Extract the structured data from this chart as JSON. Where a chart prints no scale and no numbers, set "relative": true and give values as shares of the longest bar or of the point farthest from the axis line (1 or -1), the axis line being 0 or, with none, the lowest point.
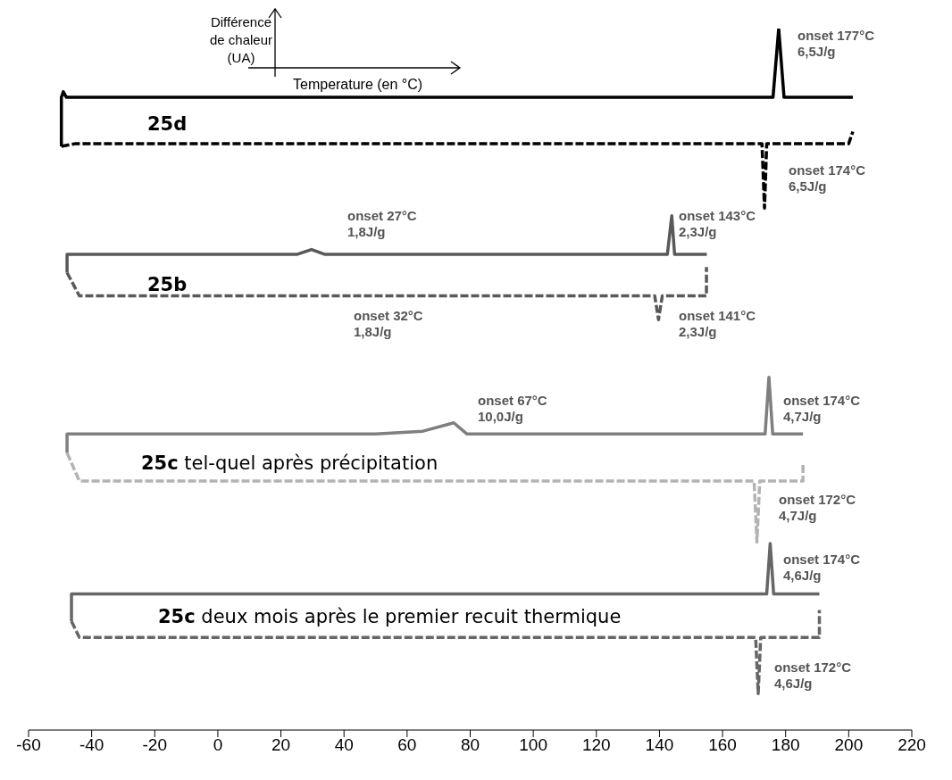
{
  "chart_data": {
    "type": "line",
    "relative": true,
    "xlabel": "Temperature (en °C)",
    "ylabel": "Différence\nde chaleur\n(UA)",
    "xlim": [
      -60,
      220
    ],
    "xticks": [
      -60,
      -40,
      -20,
      0,
      20,
      40,
      60,
      80,
      100,
      120,
      140,
      160,
      180,
      200,
      220
    ],
    "marker": "none",
    "series": [
      {
        "color": "#000000",
        "line_style": "solid",
        "x": [
          -49.6,
          -49.6,
          -49,
          -48,
          176,
          177.8,
          179.5,
          201.3
        ],
        "values": [
          0.832,
          0.902,
          0.91,
          0.902,
          0.902,
          1.0,
          0.902,
          0.902
        ]
      },
      {
        "color": "#000000",
        "line_style": "dashed",
        "x": [
          -49.6,
          -45,
          172.5,
          173.3,
          174,
          200,
          201.3
        ],
        "values": [
          0.832,
          0.836,
          0.836,
          0.744,
          0.836,
          0.836,
          0.853
        ]
      },
      {
        "color": "#595959",
        "line_style": "solid",
        "x": [
          -47.8,
          -47.8,
          25,
          29.7,
          34,
          142.5,
          143.9,
          144.8,
          155
        ],
        "values": [
          0.652,
          0.678,
          0.678,
          0.685,
          0.678,
          0.678,
          0.733,
          0.678,
          0.678
        ]
      },
      {
        "color": "#595959",
        "line_style": "dashed",
        "x": [
          -47.8,
          -43.9,
          138.5,
          139.7,
          140.9,
          154.9,
          154.9
        ],
        "values": [
          0.652,
          0.619,
          0.619,
          0.585,
          0.619,
          0.619,
          0.66
        ]
      },
      {
        "color": "#7f7f7f",
        "line_style": "solid",
        "x": [
          -47.8,
          -47.8,
          -45,
          50,
          65,
          74.8,
          79,
          173.5,
          174.7,
          175.9,
          185.5
        ],
        "values": [
          0.395,
          0.422,
          0.422,
          0.422,
          0.426,
          0.438,
          0.422,
          0.422,
          0.503,
          0.422,
          0.422
        ]
      },
      {
        "color": "#b3b3b3",
        "line_style": "dashed",
        "x": [
          -47.8,
          -43.9,
          170,
          170.9,
          171.8,
          185.5,
          185.5
        ],
        "values": [
          0.395,
          0.355,
          0.355,
          0.268,
          0.355,
          0.355,
          0.38
        ]
      },
      {
        "color": "#666666",
        "line_style": "solid",
        "x": [
          -46.4,
          -46.4,
          -44,
          174,
          175.1,
          176.2,
          190.7
        ],
        "values": [
          0.155,
          0.194,
          0.194,
          0.194,
          0.266,
          0.194,
          0.194
        ]
      },
      {
        "color": "#666666",
        "line_style": "dashed",
        "x": [
          -46.4,
          -43.9,
          170.5,
          171.3,
          172.1,
          190.7,
          190.7
        ],
        "values": [
          0.155,
          0.132,
          0.132,
          0.052,
          0.132,
          0.132,
          0.171
        ]
      }
    ],
    "annotations": [
      "onset 177°C\n6,5J/g",
      "onset 174°C\n6,5J/g",
      "onset 27°C\n1,8J/g",
      "onset 143°C\n2,3J/g",
      "onset 32°C\n1,8J/g",
      "onset 141°C\n2,3J/g",
      "onset 67°C\n10,0J/g",
      "onset 174°C\n4,7J/g",
      "onset 172°C\n4,7J/g",
      "onset 174°C\n4,6J/g",
      "onset 172°C\n4,6J/g",
      "25d",
      "25b",
      "25c tel-quel après précipitation",
      "25c deux mois après le premier recuit thermique"
    ]
  }
}
